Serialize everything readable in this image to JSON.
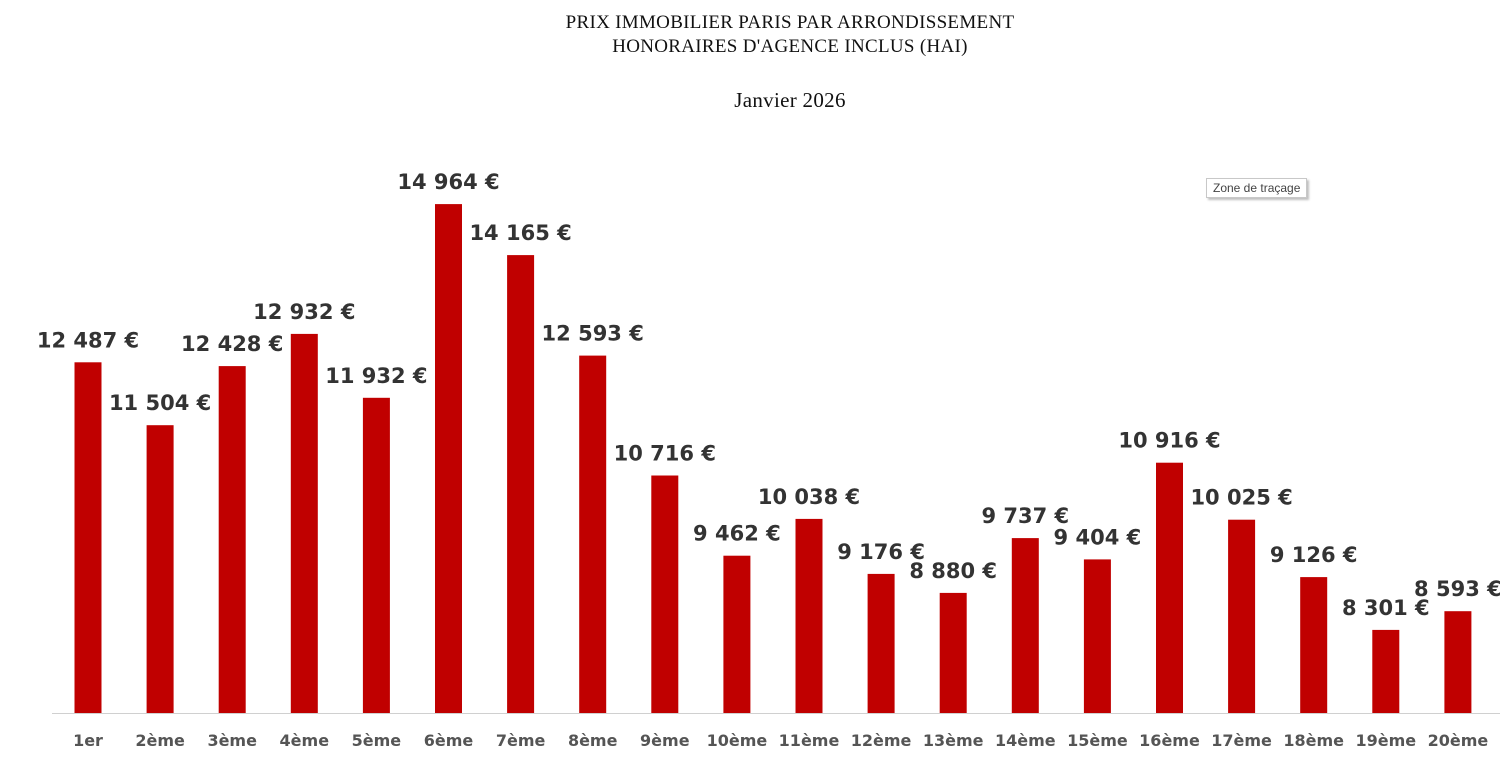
{
  "chart_data": {
    "type": "bar",
    "title_line1": "PRIX IMMOBILIER PARIS PAR ARRONDISSEMENT",
    "title_line2": "HONORAIRES D'AGENCE INCLUS (HAI)",
    "subtitle": "Janvier 2026",
    "categories": [
      "1er",
      "2ème",
      "3ème",
      "4ème",
      "5ème",
      "6ème",
      "7ème",
      "8ème",
      "9ème",
      "10ème",
      "11ème",
      "12ème",
      "13ème",
      "14ème",
      "15ème",
      "16ème",
      "17ème",
      "18ème",
      "19ème",
      "20ème"
    ],
    "values": [
      12487,
      11504,
      12428,
      12932,
      11932,
      14964,
      14165,
      12593,
      10716,
      9462,
      10038,
      9176,
      8880,
      9737,
      9404,
      10916,
      10025,
      9126,
      8301,
      8593
    ],
    "value_labels": [
      "12 487 €",
      "11 504 €",
      "12 428 €",
      "12 932 €",
      "11 932 €",
      "14 964 €",
      "14 165 €",
      "12 593 €",
      "10 716 €",
      "9 462 €",
      "10 038 €",
      "9 176 €",
      "8 880 €",
      "9 737 €",
      "9 404 €",
      "10 916 €",
      "10 025 €",
      "9 126 €",
      "8 301 €",
      "8 593 €"
    ],
    "ylim": [
      7000,
      15000
    ],
    "grid": false,
    "legend": "none",
    "bar_color": "#c00000",
    "xlabel": "",
    "ylabel": ""
  },
  "tooltip": {
    "text": "Zone de traçage"
  }
}
